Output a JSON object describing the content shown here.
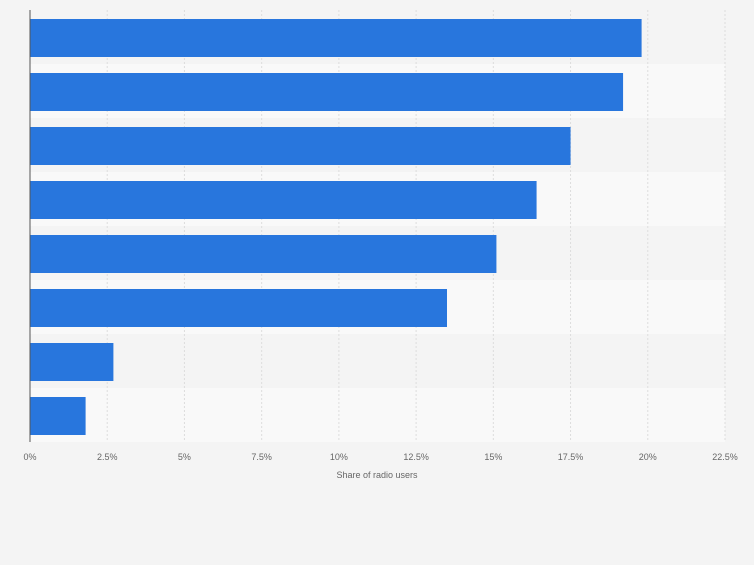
{
  "chart_data": {
    "type": "bar",
    "orientation": "horizontal",
    "title": "",
    "categories": [
      "",
      "",
      "",
      "",
      "",
      "",
      "",
      ""
    ],
    "values": [
      19.8,
      19.2,
      17.5,
      16.4,
      15.1,
      13.5,
      2.7,
      1.8
    ],
    "xlabel": "Share of radio users",
    "ylabel": "",
    "xlim": [
      0,
      22.5
    ],
    "xticks": [
      "0%",
      "2.5%",
      "5%",
      "7.5%",
      "10%",
      "12.5%",
      "15%",
      "17.5%",
      "20%",
      "22.5%"
    ],
    "grid": true,
    "bar_color": "#2876dd",
    "band_colors": [
      "#f4f4f4",
      "#f9f9f9"
    ]
  }
}
